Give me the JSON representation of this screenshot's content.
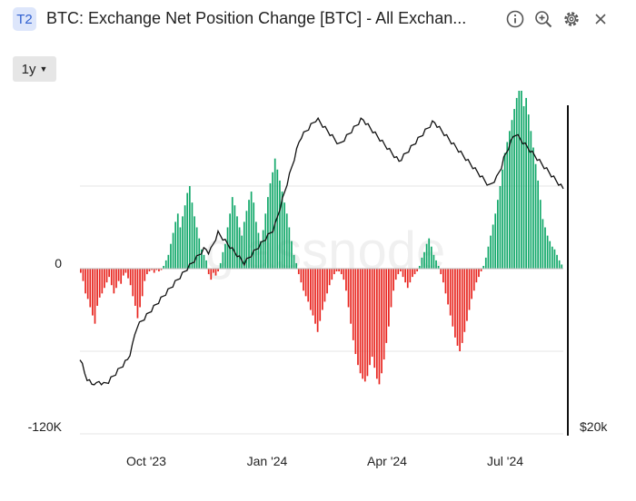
{
  "header": {
    "badge": "T2",
    "title": "BTC: Exchange Net Position Change [BTC] - All Exchan...",
    "icons": [
      "info-icon",
      "zoom-in-icon",
      "gear-icon",
      "close-icon"
    ]
  },
  "controls": {
    "range_label": "1y"
  },
  "watermark": "glassnode",
  "chart_data": {
    "type": "bar",
    "title": "BTC: Exchange Net Position Change [BTC] - All Exchan...",
    "x_ticks": [
      "Oct '23",
      "Jan '24",
      "Apr '24",
      "Jul '24"
    ],
    "left_axis": {
      "labels": [
        "0",
        "-120K"
      ],
      "range": [
        -120000,
        120000
      ]
    },
    "right_axis": {
      "labels": [
        "$20k"
      ]
    },
    "colors": {
      "positive": "#12a86a",
      "negative": "#e8251f",
      "price": "#111111",
      "grid": "#e6e6e6"
    },
    "net_position_change": [
      -3000,
      -9000,
      -18000,
      -22000,
      -28000,
      -34000,
      -40000,
      -27000,
      -21000,
      -18000,
      -14000,
      -10000,
      -6000,
      -12000,
      -18000,
      -14000,
      -9000,
      -11000,
      -5000,
      -3000,
      -7000,
      -12000,
      -20000,
      -27000,
      -36000,
      -28000,
      -20000,
      -9000,
      -4000,
      -2000,
      -1000,
      -3000,
      -1000,
      -2000,
      -1000,
      2000,
      6000,
      10000,
      18000,
      26000,
      34000,
      40000,
      30000,
      38000,
      46000,
      55000,
      60000,
      48000,
      38000,
      30000,
      22000,
      14000,
      10000,
      6000,
      -4000,
      -8000,
      -3000,
      -5000,
      -2000,
      4000,
      12000,
      18000,
      30000,
      40000,
      52000,
      46000,
      38000,
      30000,
      24000,
      34000,
      42000,
      50000,
      56000,
      48000,
      34000,
      26000,
      20000,
      28000,
      40000,
      52000,
      62000,
      70000,
      80000,
      72000,
      64000,
      56000,
      48000,
      40000,
      30000,
      20000,
      10000,
      4000,
      -4000,
      -10000,
      -16000,
      -20000,
      -24000,
      -30000,
      -34000,
      -40000,
      -46000,
      -38000,
      -30000,
      -24000,
      -18000,
      -12000,
      -8000,
      -4000,
      -2000,
      -2000,
      -4000,
      -8000,
      -16000,
      -28000,
      -40000,
      -52000,
      -62000,
      -70000,
      -76000,
      -80000,
      -82000,
      -78000,
      -70000,
      -64000,
      -72000,
      -80000,
      -84000,
      -76000,
      -66000,
      -54000,
      -42000,
      -28000,
      -16000,
      -8000,
      -4000,
      -2000,
      -6000,
      -10000,
      -14000,
      -10000,
      -6000,
      -4000,
      -2000,
      2000,
      8000,
      12000,
      18000,
      22000,
      16000,
      10000,
      6000,
      2000,
      -4000,
      -10000,
      -18000,
      -26000,
      -34000,
      -42000,
      -50000,
      -56000,
      -60000,
      -54000,
      -46000,
      -38000,
      -30000,
      -22000,
      -16000,
      -10000,
      -6000,
      -2000,
      2000,
      8000,
      16000,
      24000,
      32000,
      40000,
      50000,
      60000,
      72000,
      84000,
      92000,
      100000,
      108000,
      116000,
      124000,
      136000,
      130000,
      118000,
      124000,
      112000,
      100000,
      88000,
      76000,
      64000,
      50000,
      36000,
      30000,
      24000,
      20000,
      16000,
      14000,
      10000,
      6000,
      3000
    ],
    "price_series": [
      -65000,
      -70000,
      -76000,
      -80000,
      -82000,
      -84000,
      -83000,
      -84000,
      -82000,
      -83000,
      -84000,
      -83000,
      -82000,
      -80000,
      -78000,
      -76000,
      -74000,
      -72000,
      -70000,
      -68000,
      -66000,
      -62000,
      -56000,
      -48000,
      -42000,
      -40000,
      -38000,
      -36000,
      -34000,
      -32000,
      -30000,
      -28000,
      -26000,
      -24000,
      -22000,
      -20000,
      -18000,
      -16000,
      -14000,
      -12000,
      -10000,
      -8000,
      -6000,
      -4000,
      -2000,
      0,
      2000,
      4000,
      6000,
      8000,
      10000,
      12000,
      14000,
      14000,
      12000,
      14000,
      18000,
      22000,
      26000,
      24000,
      22000,
      20000,
      18000,
      16000,
      14000,
      12000,
      10000,
      8000,
      6000,
      4000,
      6000,
      8000,
      10000,
      12000,
      14000,
      16000,
      18000,
      20000,
      22000,
      24000,
      26000,
      28000,
      32000,
      38000,
      44000,
      50000,
      56000,
      62000,
      68000,
      74000,
      80000,
      86000,
      92000,
      96000,
      98000,
      100000,
      102000,
      104000,
      106000,
      108000,
      108000,
      106000,
      104000,
      102000,
      100000,
      98000,
      96000,
      94000,
      92000,
      90000,
      92000,
      94000,
      96000,
      98000,
      100000,
      102000,
      104000,
      106000,
      108000,
      108000,
      106000,
      104000,
      102000,
      100000,
      98000,
      96000,
      94000,
      92000,
      90000,
      88000,
      86000,
      84000,
      82000,
      80000,
      78000,
      80000,
      82000,
      84000,
      86000,
      88000,
      90000,
      92000,
      94000,
      96000,
      98000,
      100000,
      102000,
      104000,
      106000,
      106000,
      104000,
      102000,
      100000,
      98000,
      96000,
      94000,
      92000,
      90000,
      88000,
      86000,
      84000,
      82000,
      80000,
      78000,
      76000,
      74000,
      72000,
      70000,
      68000,
      66000,
      64000,
      62000,
      60000,
      62000,
      64000,
      66000,
      70000,
      74000,
      80000,
      84000,
      88000,
      92000,
      96000,
      98000,
      96000,
      94000,
      92000,
      90000,
      88000,
      86000,
      84000,
      82000,
      80000,
      78000,
      76000,
      74000,
      72000,
      70000,
      68000,
      66000,
      64000,
      62000,
      60000,
      58000
    ]
  }
}
